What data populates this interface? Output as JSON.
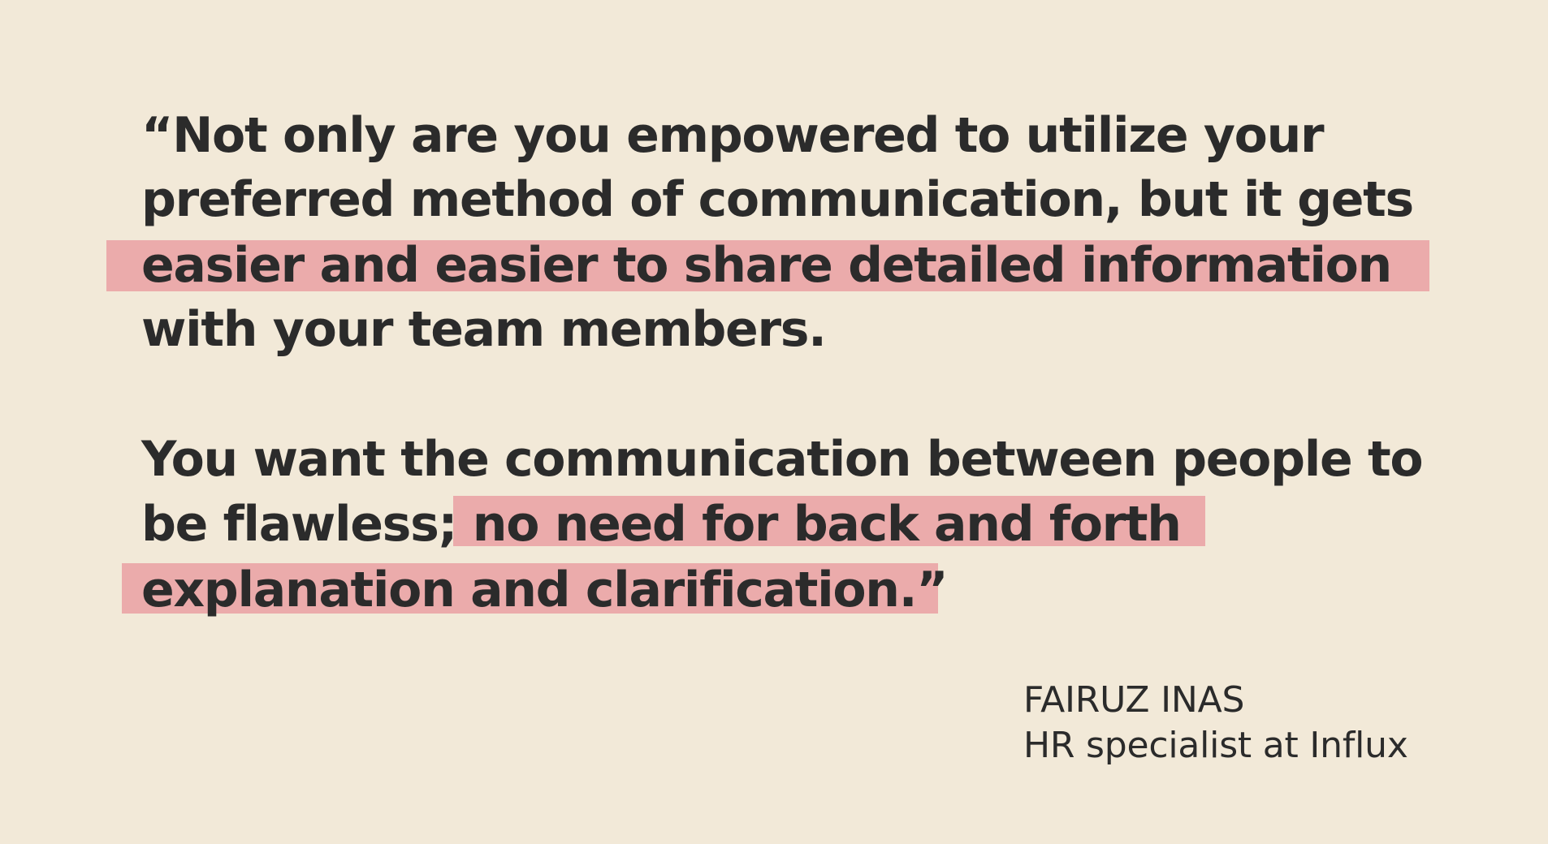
{
  "quote": {
    "paragraph1": [
      "“Not only are you empowered to utilize your",
      "preferred method of communication, but it gets",
      "easier and easier to share detailed information",
      "with your team members."
    ],
    "paragraph2": {
      "line1": "You want the communication between people to",
      "line2_plain": "be flawless; ",
      "line2_highlighted": "no need for back and forth",
      "line3": "explanation and clarification.”"
    }
  },
  "attribution": {
    "name": "FAIRUZ INAS",
    "role": "HR specialist at Influx"
  },
  "colors": {
    "background": "#f2e9d8",
    "text": "#2b2b2b",
    "highlight": "#ebabab"
  }
}
